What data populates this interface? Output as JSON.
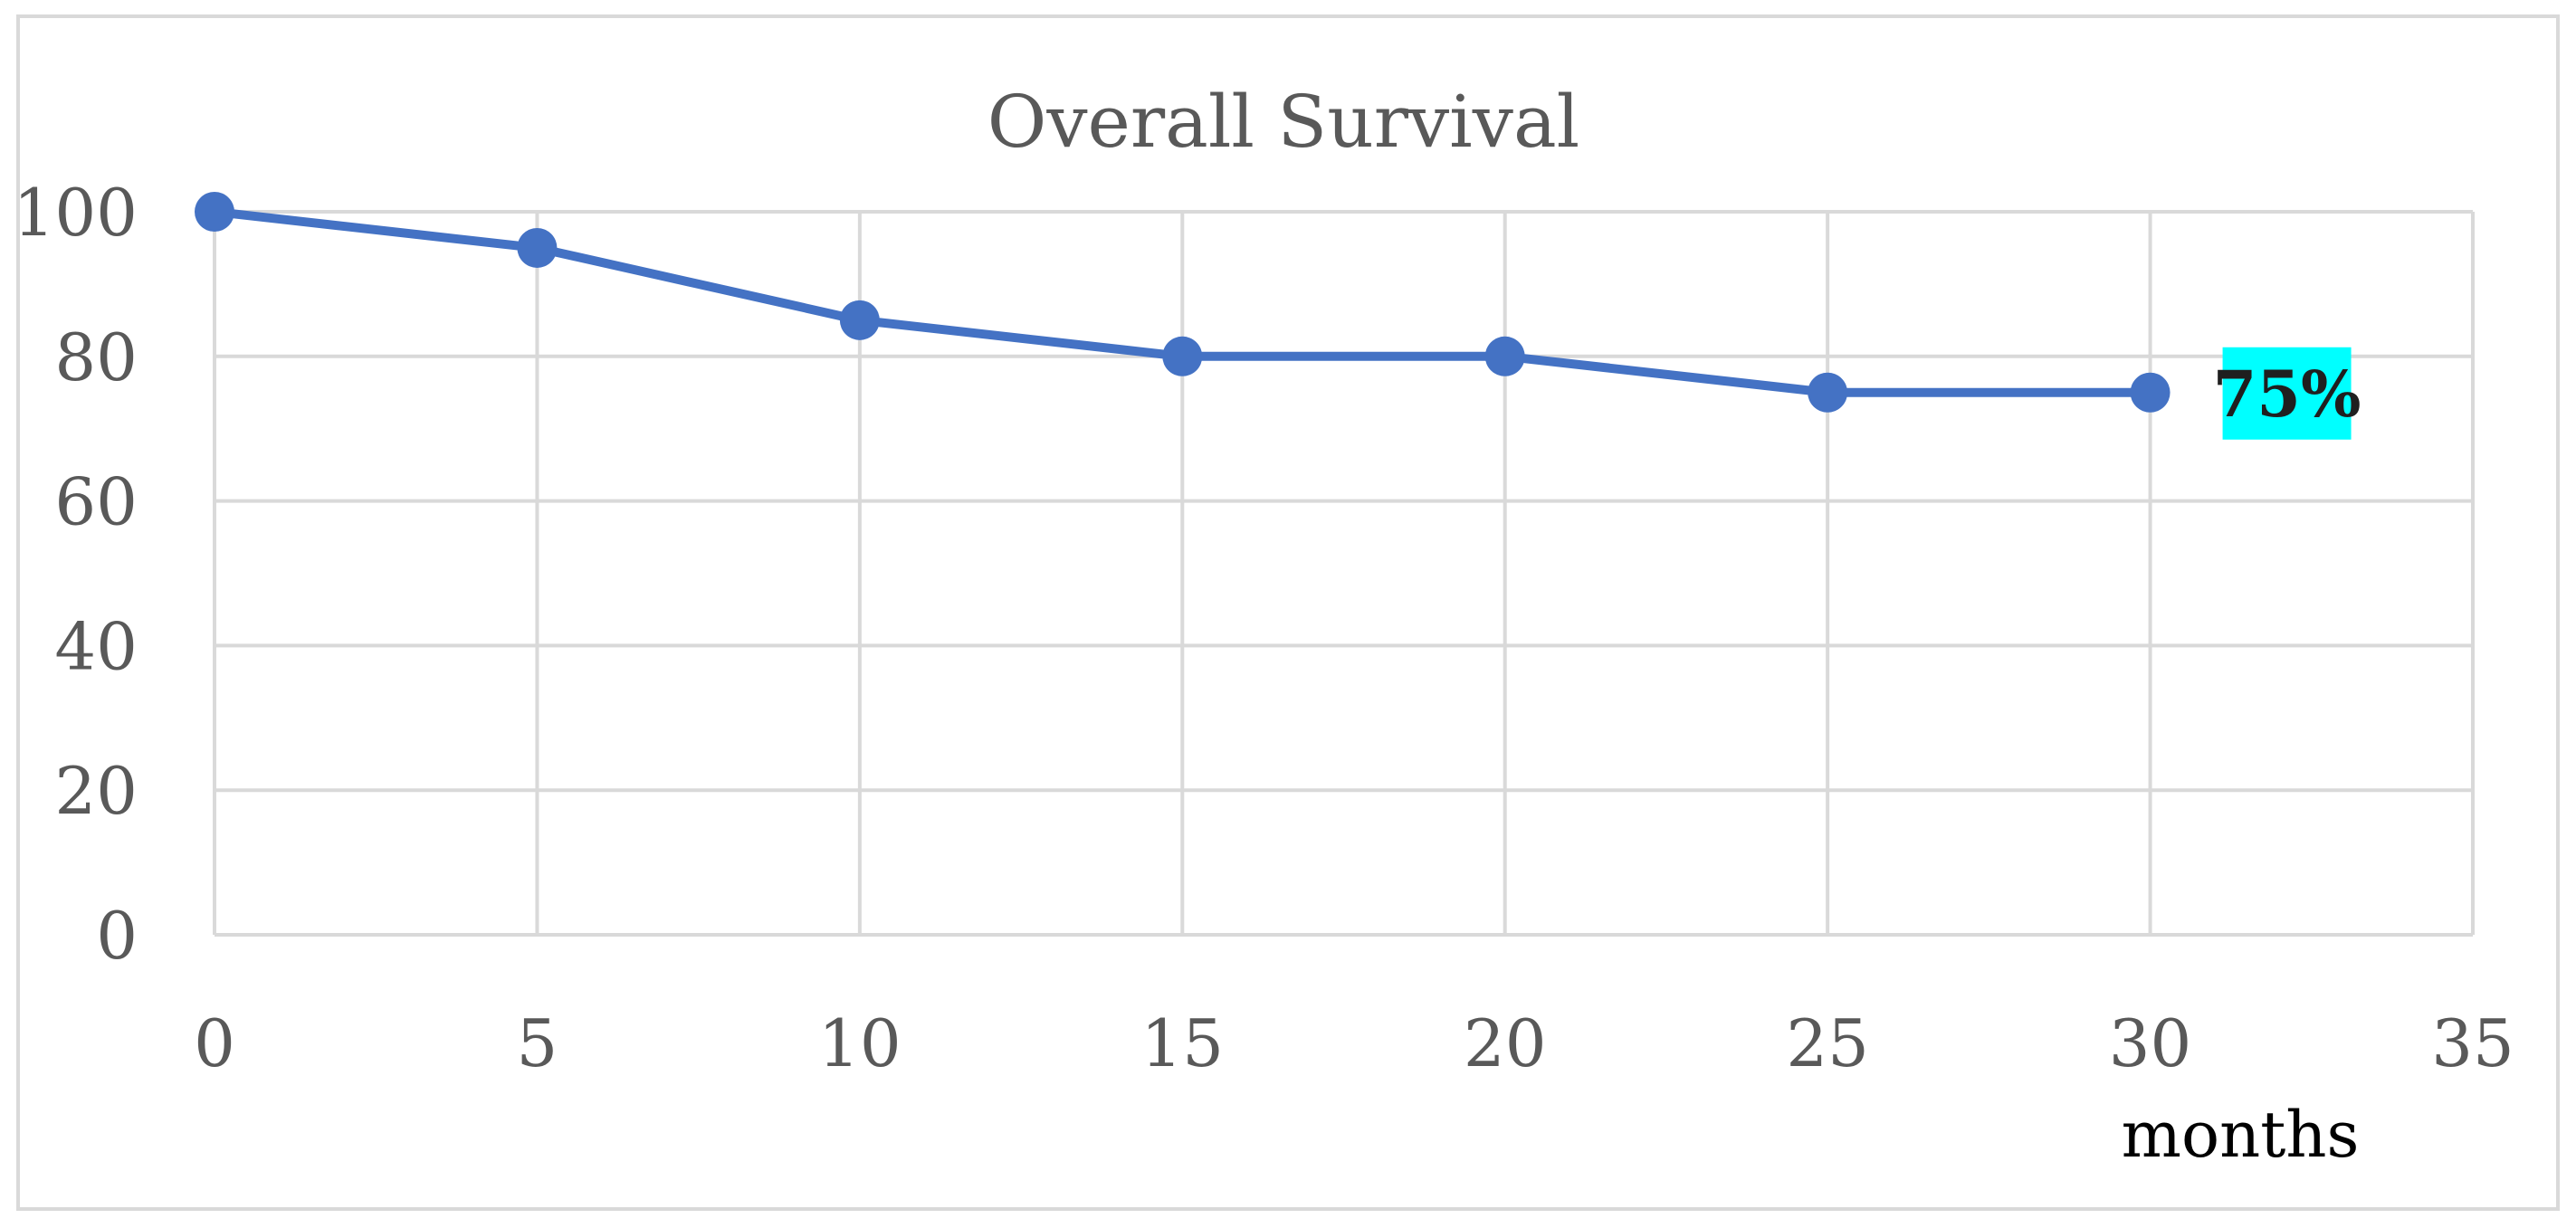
{
  "chart_data": {
    "type": "line",
    "title": "Overall Survival",
    "xlabel": "months",
    "ylabel": "",
    "xlim": [
      0,
      35
    ],
    "ylim": [
      0,
      100
    ],
    "x_ticks": [
      0,
      5,
      10,
      15,
      20,
      25,
      30,
      35
    ],
    "y_ticks": [
      0,
      20,
      40,
      60,
      80,
      100
    ],
    "grid": true,
    "legend": "none",
    "series": [
      {
        "x": [
          0,
          5,
          10,
          15,
          20,
          25,
          30
        ],
        "y": [
          100,
          95,
          85,
          80,
          80,
          75,
          75
        ],
        "color": "#4472C4"
      }
    ],
    "annotations": [
      {
        "text": "75%",
        "x": 30,
        "y": 75,
        "background": "#00FFFF",
        "bold": true
      }
    ]
  },
  "colors": {
    "grid": "#D9D9D9",
    "text": "#595959",
    "border": "#D9D9D9",
    "series": "#4472C4"
  }
}
